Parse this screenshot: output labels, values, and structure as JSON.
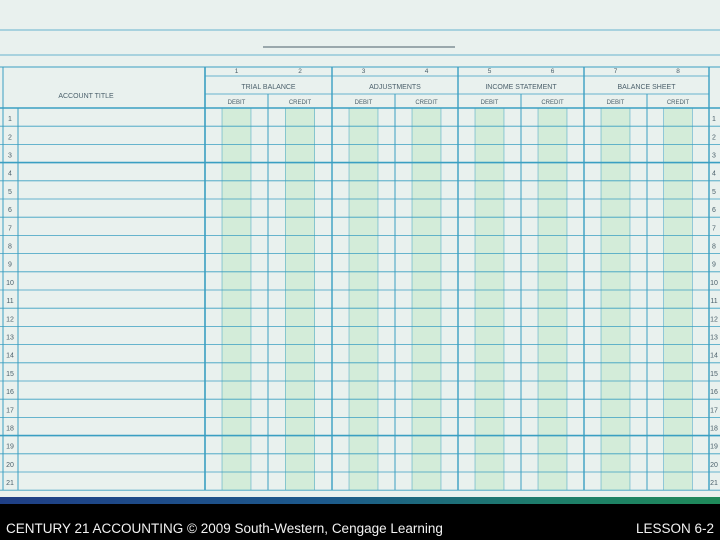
{
  "worksheet": {
    "account_title_header": "ACCOUNT TITLE",
    "column_numbers": [
      "1",
      "2",
      "3",
      "4",
      "5",
      "6",
      "7",
      "8"
    ],
    "sections": [
      "TRIAL BALANCE",
      "ADJUSTMENTS",
      "INCOME STATEMENT",
      "BALANCE SHEET"
    ],
    "sub_headers": [
      "DEBIT",
      "CREDIT",
      "DEBIT",
      "CREDIT",
      "DEBIT",
      "CREDIT",
      "DEBIT",
      "CREDIT"
    ],
    "rows": [
      "1",
      "2",
      "3",
      "4",
      "5",
      "6",
      "7",
      "8",
      "9",
      "10",
      "11",
      "12",
      "13",
      "14",
      "15",
      "16",
      "17",
      "18",
      "19",
      "20",
      "21"
    ]
  },
  "footer": {
    "left_text": "CENTURY 21 ACCOUNTING © 2009 South-Western, Cengage Learning",
    "right_text": "LESSON  6-2"
  },
  "colors": {
    "paper": "#e9f1ee",
    "rule": "#3a9fc2",
    "money_band": "#d3ecd9",
    "footer_band_start": "#1f3f86",
    "footer_band_end": "#1f8a5a"
  }
}
